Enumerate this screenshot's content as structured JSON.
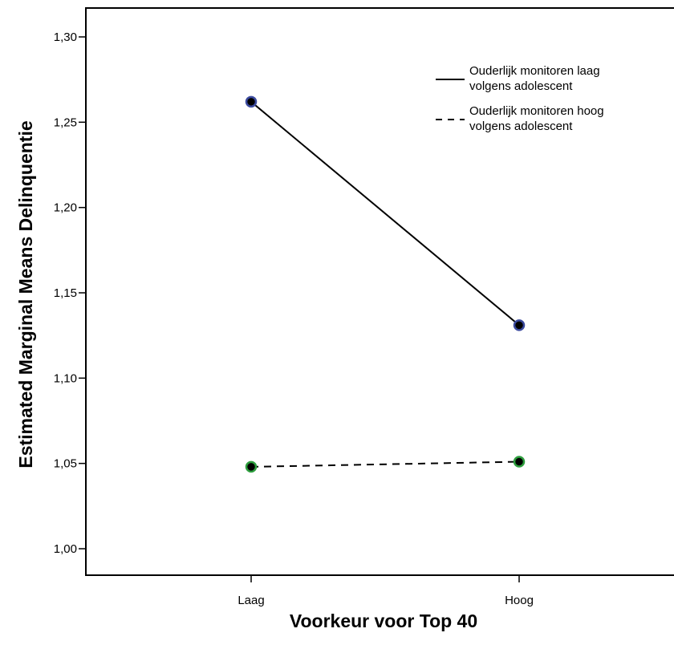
{
  "chart_data": {
    "type": "line",
    "title": "",
    "xlabel": "Voorkeur voor Top 40",
    "ylabel": "Estimated Marginal Means Delinquentie",
    "categories": [
      "Laag",
      "Hoog"
    ],
    "ylim": [
      0.985,
      1.315
    ],
    "yticks": [
      "1,00",
      "1,05",
      "1,10",
      "1,15",
      "1,20",
      "1,25",
      "1,30"
    ],
    "ytick_values": [
      1.0,
      1.05,
      1.1,
      1.15,
      1.2,
      1.25,
      1.3
    ],
    "grid": false,
    "legend_position": "top-right",
    "series": [
      {
        "name_line1": "Ouderlijk monitoren laag",
        "name_line2": "volgens adolescent",
        "style": "solid",
        "marker_color": "#3b4a9e",
        "values": [
          1.262,
          1.131
        ]
      },
      {
        "name_line1": "Ouderlijk monitoren hoog",
        "name_line2": "volgens adolescent",
        "style": "dashed",
        "marker_color": "#2e9e3e",
        "values": [
          1.048,
          1.051
        ]
      }
    ]
  }
}
